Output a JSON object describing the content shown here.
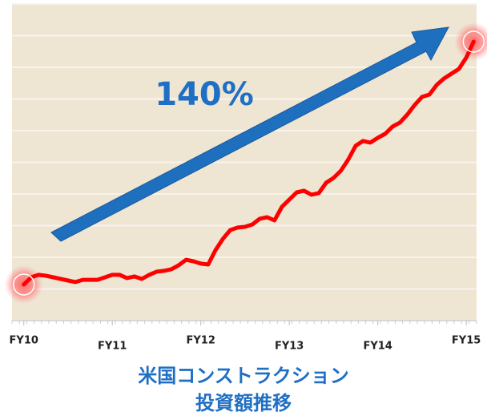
{
  "chart_data": {
    "type": "line",
    "title": [
      "米国コンストラクション",
      "投資額推移"
    ],
    "annotation": "140%",
    "x": [
      0,
      1,
      2,
      3,
      4,
      5,
      6,
      7,
      8,
      9,
      10,
      11,
      12,
      13,
      14,
      15,
      16,
      17,
      18,
      19,
      20,
      21,
      22,
      23,
      24,
      25,
      26,
      27,
      28,
      29,
      30,
      31,
      32,
      33,
      34,
      35,
      36,
      37,
      38,
      39,
      40,
      41,
      42,
      43,
      44,
      45,
      46,
      47,
      48,
      49,
      50,
      51,
      52,
      53,
      54,
      55,
      56,
      57,
      58,
      59,
      60,
      61
    ],
    "series": [
      {
        "color": "#ff0000",
        "values": [
          100.5,
          104.6,
          106.0,
          105.5,
          104.6,
          103.7,
          102.8,
          101.9,
          103.2,
          103.2,
          103.2,
          104.6,
          106.0,
          106.0,
          104.2,
          105.1,
          103.7,
          106.0,
          107.8,
          108.3,
          109.2,
          111.5,
          114.6,
          113.7,
          112.4,
          111.9,
          120.1,
          126.5,
          131.5,
          132.9,
          133.3,
          134.7,
          137.9,
          138.8,
          137.0,
          144.7,
          148.8,
          152.9,
          153.8,
          151.6,
          152.5,
          158.4,
          161.1,
          165.2,
          171.6,
          179.4,
          182.1,
          181.2,
          183.9,
          186.2,
          190.3,
          192.6,
          197.1,
          202.6,
          207.2,
          208.5,
          214.0,
          217.7,
          220.4,
          223.1,
          229.5,
          238.6
        ]
      }
    ],
    "xlim": [
      -1.6,
      61.4
    ],
    "xticks": [
      {
        "value": 0,
        "label": "FY10"
      },
      {
        "value": 12,
        "label": "FY11"
      },
      {
        "value": 24,
        "label": "FY12"
      },
      {
        "value": 36,
        "label": "FY13"
      },
      {
        "value": 48,
        "label": "FY14"
      },
      {
        "value": 60,
        "label": "FY15"
      }
    ],
    "ylim": [
      80,
      260
    ],
    "yticks": [
      80,
      98,
      116,
      134,
      152,
      170,
      188,
      206,
      224,
      242,
      260
    ],
    "grid": true
  }
}
